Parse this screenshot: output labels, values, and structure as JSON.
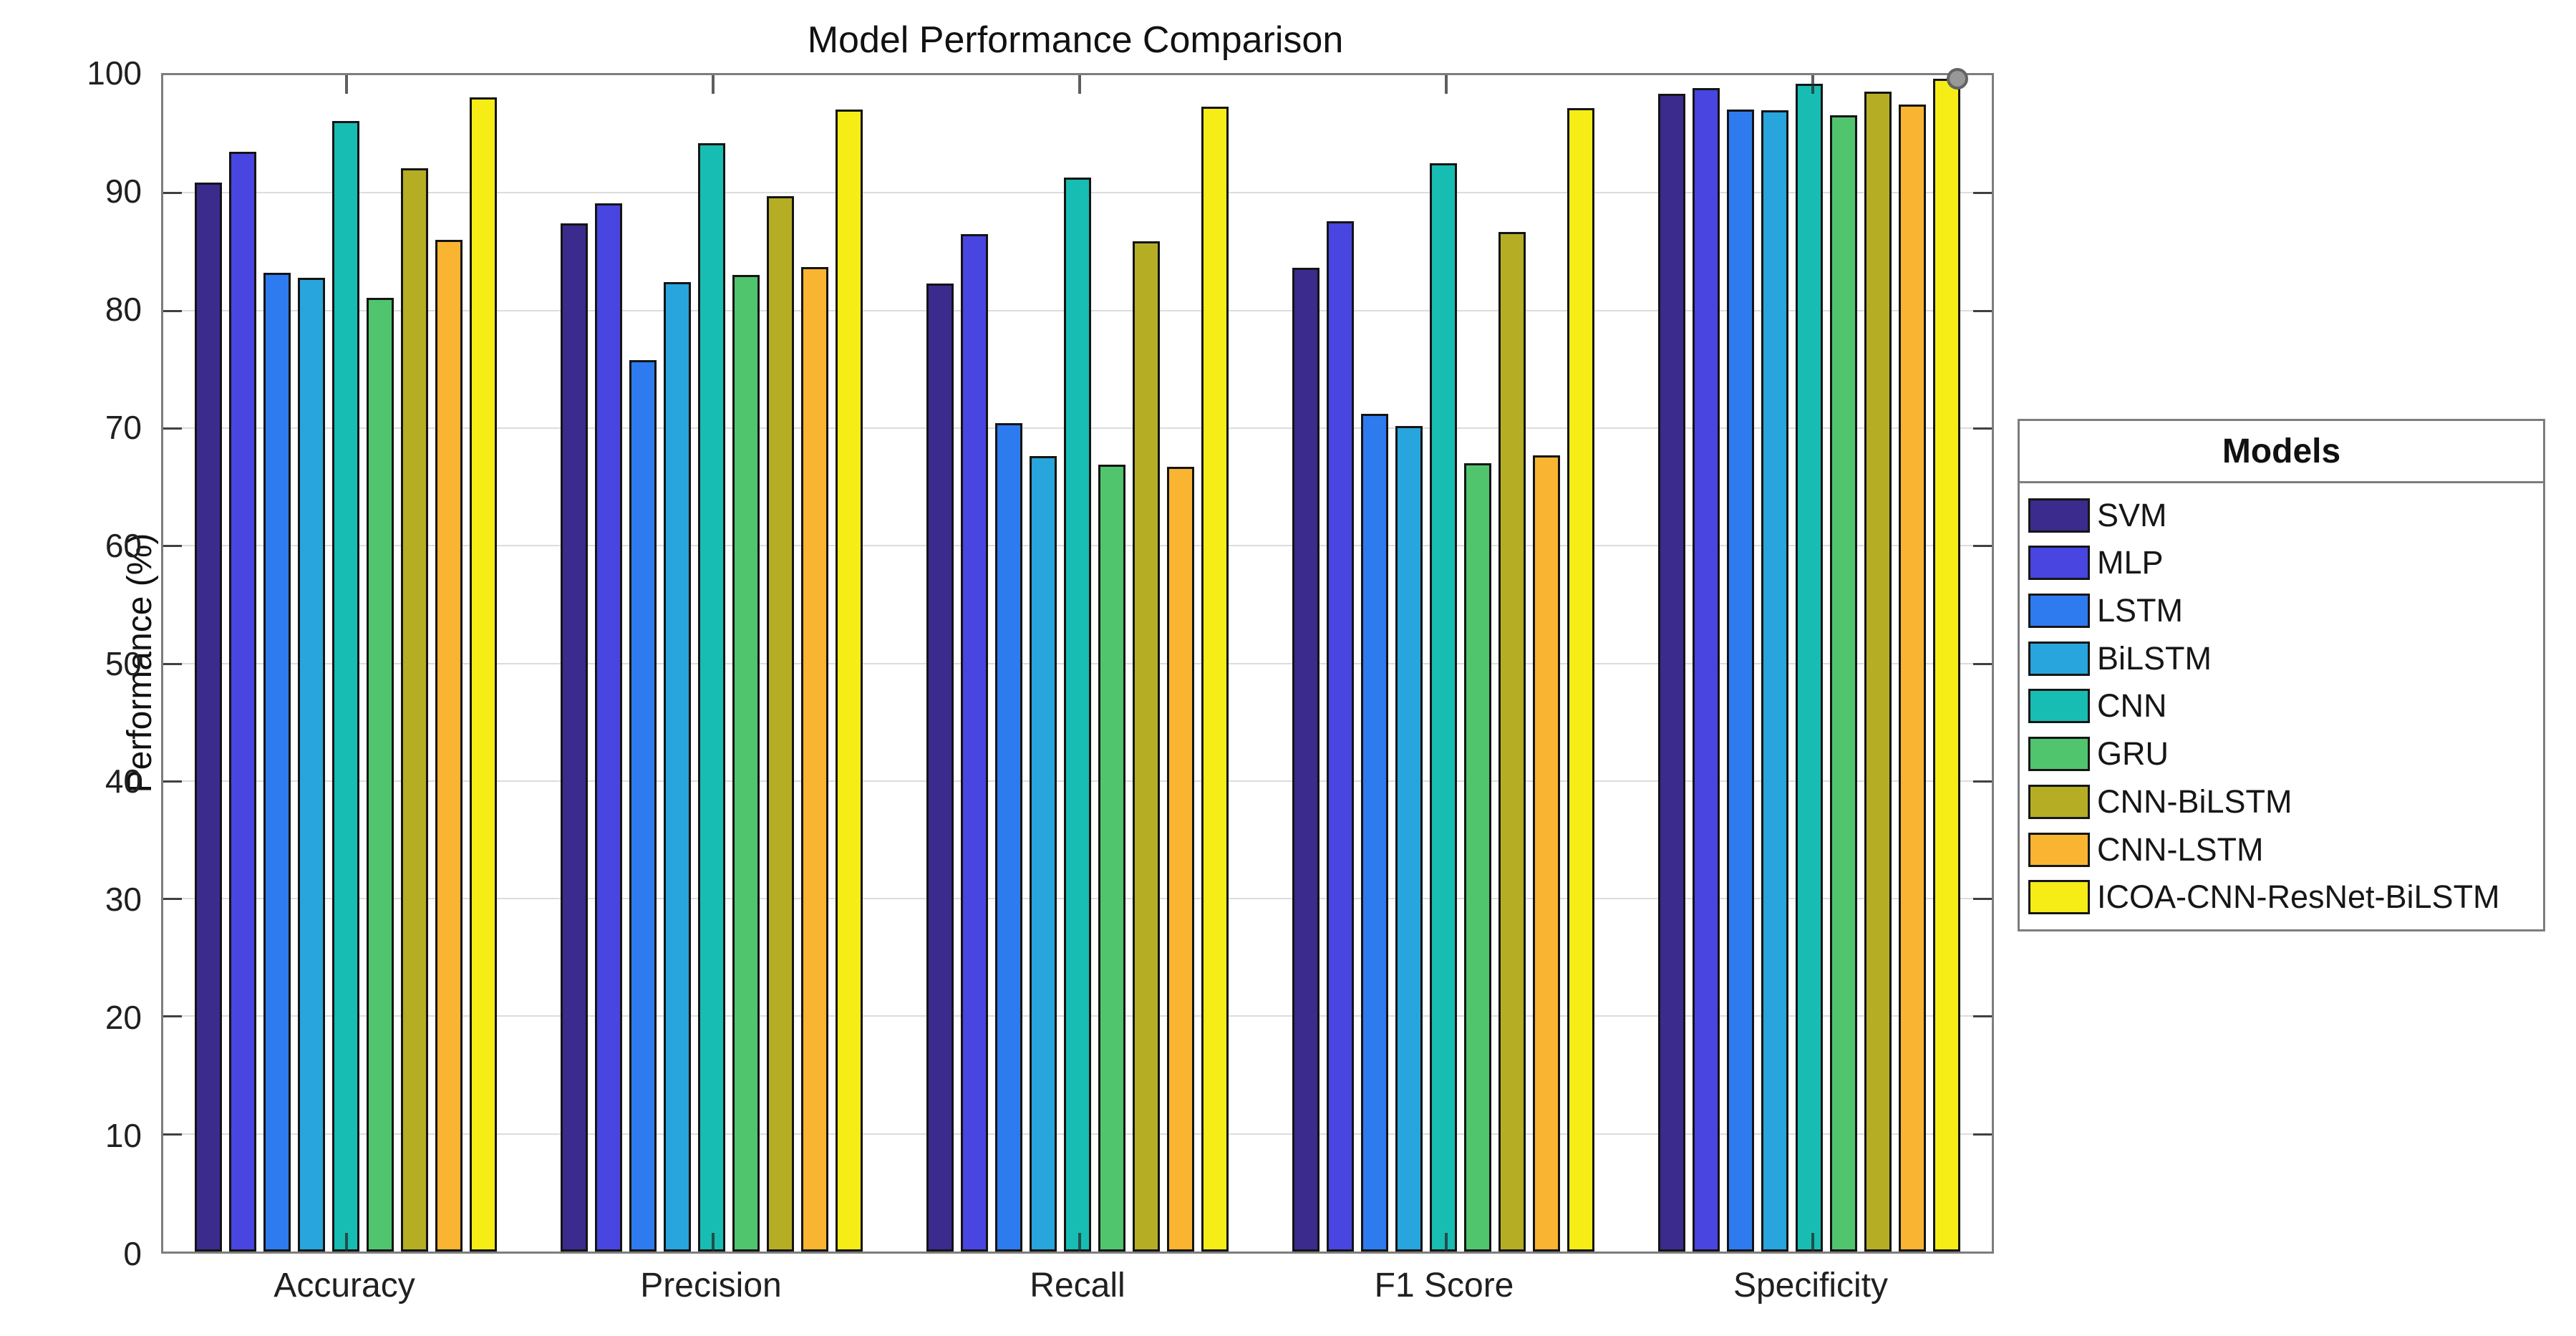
{
  "title": "Model Performance Comparison",
  "y_axis": {
    "label": "Performance (%)",
    "min": 0,
    "max": 100,
    "tick_step": 10,
    "tick_labels": [
      "0",
      "10",
      "20",
      "30",
      "40",
      "50",
      "60",
      "70",
      "80",
      "90",
      "100"
    ]
  },
  "x_axis": {
    "categories": [
      "Accuracy",
      "Precision",
      "Recall",
      "F1 Score",
      "Specificity"
    ]
  },
  "legend": {
    "title": "Models",
    "position": "right-outside"
  },
  "colors": {
    "grid": "#dcdcdc",
    "axis_box": "#7d7d7d",
    "bar_edge": "#141414",
    "marker_dot": "#989898"
  },
  "chart_data": {
    "type": "bar",
    "title": "Model Performance Comparison",
    "xlabel": "",
    "ylabel": "Performance (%)",
    "ylim": [
      0,
      100
    ],
    "grid": "horizontal",
    "legend_position": "right-outside",
    "categories": [
      "Accuracy",
      "Precision",
      "Recall",
      "F1 Score",
      "Specificity"
    ],
    "series": [
      {
        "name": "SVM",
        "color": "#3A2B8C",
        "values": [
          90.9,
          87.4,
          82.3,
          83.6,
          98.4
        ]
      },
      {
        "name": "MLP",
        "color": "#4845E0",
        "values": [
          93.5,
          89.1,
          86.5,
          87.6,
          98.9
        ]
      },
      {
        "name": "LSTM",
        "color": "#2E7BF0",
        "values": [
          83.2,
          75.8,
          70.4,
          71.2,
          97.1
        ]
      },
      {
        "name": "BiLSTM",
        "color": "#27A5DC",
        "values": [
          82.8,
          82.4,
          67.6,
          70.2,
          97.0
        ]
      },
      {
        "name": "CNN",
        "color": "#17BDB2",
        "values": [
          96.1,
          94.2,
          91.3,
          92.5,
          99.3
        ]
      },
      {
        "name": "GRU",
        "color": "#50C56E",
        "values": [
          81.1,
          83.0,
          66.9,
          67.0,
          96.6
        ]
      },
      {
        "name": "CNN-BiLSTM",
        "color": "#B5AE25",
        "values": [
          92.1,
          89.7,
          85.9,
          86.7,
          98.6
        ]
      },
      {
        "name": "CNN-LSTM",
        "color": "#F9B431",
        "values": [
          86.0,
          83.7,
          66.7,
          67.7,
          97.5
        ]
      },
      {
        "name": "ICOA-CNN-ResNet-BiLSTM",
        "color": "#F6EC16",
        "values": [
          98.1,
          97.1,
          97.3,
          97.2,
          99.7
        ]
      }
    ],
    "annotations": [
      {
        "type": "dot-marker",
        "category": "Specificity",
        "series": "ICOA-CNN-ResNet-BiLSTM"
      }
    ]
  }
}
